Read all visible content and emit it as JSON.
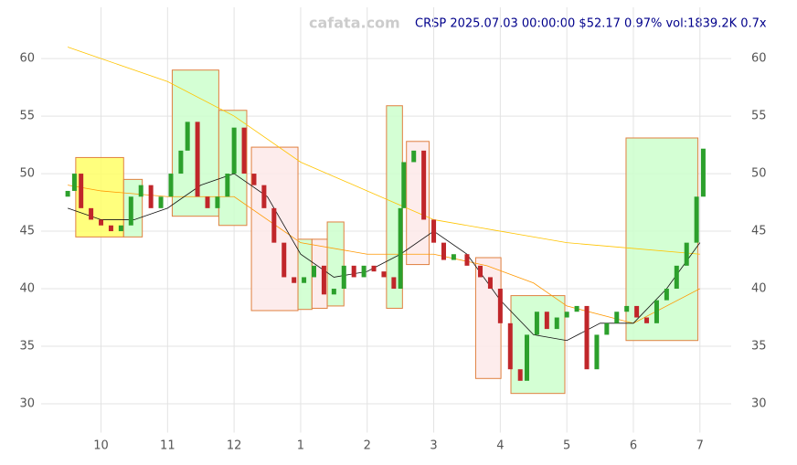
{
  "chart_data": {
    "type": "candlestick",
    "title": "CRSP 2025.07.03 00:00:00 $52.17 0.97% vol:1839.2K 0.7x",
    "watermark": "cafata.com",
    "xlim": [
      9.1,
      19.47
    ],
    "ylim": [
      27.5,
      63.5
    ],
    "xticks": [
      10,
      11,
      12,
      {
        "value": 13,
        "label": "1"
      },
      {
        "value": 14,
        "label": "2"
      },
      {
        "value": 15,
        "label": "3"
      },
      {
        "value": 16,
        "label": "4"
      },
      {
        "value": 17,
        "label": "5"
      },
      {
        "value": 18,
        "label": "6"
      },
      {
        "value": 19,
        "label": "7"
      }
    ],
    "yticks": [
      30,
      35,
      40,
      45,
      50,
      55,
      60
    ],
    "grid": true,
    "up_color": "#2ca02c",
    "down_color": "#c0262a",
    "x": [
      9.5,
      9.6,
      9.7,
      9.85,
      10.0,
      10.15,
      10.3,
      10.45,
      10.6,
      10.75,
      10.9,
      11.05,
      11.2,
      11.3,
      11.45,
      11.6,
      11.75,
      11.9,
      12.0,
      12.15,
      12.3,
      12.45,
      12.6,
      12.75,
      12.9,
      13.05,
      13.2,
      13.35,
      13.5,
      13.65,
      13.8,
      13.95,
      14.1,
      14.25,
      14.4,
      14.5,
      14.55,
      14.7,
      14.85,
      15.0,
      15.15,
      15.3,
      15.5,
      15.7,
      15.85,
      16.0,
      16.15,
      16.3,
      16.4,
      16.55,
      16.7,
      16.85,
      17.0,
      17.15,
      17.3,
      17.45,
      17.6,
      17.75,
      17.9,
      18.05,
      18.2,
      18.35,
      18.5,
      18.65,
      18.8,
      18.95,
      19.05
    ],
    "open": [
      48,
      48.5,
      50,
      47,
      46,
      45.5,
      45,
      45.5,
      48,
      49,
      47,
      48,
      50,
      52,
      54.5,
      48,
      47,
      48,
      50,
      54,
      50,
      49,
      47,
      44,
      41,
      40.5,
      41,
      42,
      39.5,
      40,
      42,
      41,
      42,
      41.5,
      41,
      40,
      47,
      51,
      52,
      46,
      44,
      42.5,
      43,
      42,
      41,
      40,
      37,
      33,
      32,
      36,
      38,
      36.5,
      37.5,
      38,
      38.5,
      33,
      36,
      37,
      38,
      38.5,
      37.5,
      37,
      39,
      40,
      42,
      44,
      48
    ],
    "close": [
      48.5,
      50,
      47,
      46,
      45.5,
      45,
      45.5,
      48,
      49,
      47,
      48,
      50,
      52,
      54.5,
      48,
      47,
      48,
      50,
      54,
      50,
      49,
      47,
      44,
      41,
      40.5,
      41,
      42,
      39.5,
      40,
      42,
      41,
      42,
      41.5,
      41,
      40,
      47,
      51,
      52,
      46,
      44,
      42.5,
      43,
      42,
      41,
      40,
      37,
      33,
      32,
      36,
      38,
      36.5,
      37.5,
      38,
      38.5,
      33,
      36,
      37,
      38,
      38.5,
      37.5,
      37,
      39,
      40,
      42,
      44,
      48,
      52.17
    ],
    "lines": [
      {
        "color": "#ffc400",
        "x": [
          9.5,
          10,
          11,
          12,
          13,
          14,
          15,
          16,
          17,
          18,
          19
        ],
        "values": [
          61,
          60,
          58,
          55,
          51,
          48.5,
          46,
          45,
          44,
          43.5,
          43
        ]
      },
      {
        "color": "#ff9800",
        "x": [
          9.5,
          10,
          11,
          12,
          12.5,
          13,
          14,
          15,
          15.8,
          16.5,
          17,
          18,
          19
        ],
        "values": [
          49,
          48.5,
          48,
          48,
          46,
          44,
          43,
          43,
          42,
          40.5,
          38.5,
          37,
          40
        ]
      },
      {
        "color": "#111111",
        "x": [
          9.5,
          10,
          10.5,
          11,
          11.5,
          12,
          12.5,
          13,
          13.5,
          14,
          14.5,
          15,
          15.5,
          16,
          16.5,
          17,
          17.5,
          18,
          18.5,
          19
        ],
        "values": [
          47,
          46,
          46,
          47,
          49,
          50,
          48,
          43,
          41,
          41.5,
          43,
          45,
          43,
          39,
          36,
          35.5,
          37,
          37,
          40,
          44
        ]
      }
    ],
    "boxes": [
      {
        "x": [
          9.62,
          10.34
        ],
        "y": [
          44.5,
          51.4
        ],
        "color": "#ffff66"
      },
      {
        "x": [
          10.34,
          10.62
        ],
        "y": [
          44.5,
          49.5
        ],
        "color": "#ccffcc"
      },
      {
        "x": [
          11.07,
          11.77
        ],
        "y": [
          46.3,
          59
        ],
        "color": "#ccffcc"
      },
      {
        "x": [
          11.77,
          12.19
        ],
        "y": [
          45.5,
          55.5
        ],
        "color": "#ccffcc"
      },
      {
        "x": [
          12.26,
          12.96
        ],
        "y": [
          38.1,
          52.3
        ],
        "color": "#fde9e9"
      },
      {
        "x": [
          12.96,
          13.17
        ],
        "y": [
          38.2,
          44.3
        ],
        "color": "#ccffcc"
      },
      {
        "x": [
          13.17,
          13.4
        ],
        "y": [
          38.3,
          44.3
        ],
        "color": "#fde9e9"
      },
      {
        "x": [
          13.4,
          13.65
        ],
        "y": [
          38.5,
          45.8
        ],
        "color": "#ccffcc"
      },
      {
        "x": [
          14.29,
          14.53
        ],
        "y": [
          38.3,
          55.9
        ],
        "color": "#ccffcc"
      },
      {
        "x": [
          14.59,
          14.93
        ],
        "y": [
          42.1,
          52.8
        ],
        "color": "#fde9e9"
      },
      {
        "x": [
          15.63,
          16.01
        ],
        "y": [
          32.2,
          42.7
        ],
        "color": "#fde9e9"
      },
      {
        "x": [
          16.16,
          16.97
        ],
        "y": [
          30.9,
          39.4
        ],
        "color": "#ccffcc"
      },
      {
        "x": [
          17.89,
          18.97
        ],
        "y": [
          35.5,
          53.1
        ],
        "color": "#ccffcc"
      }
    ]
  }
}
